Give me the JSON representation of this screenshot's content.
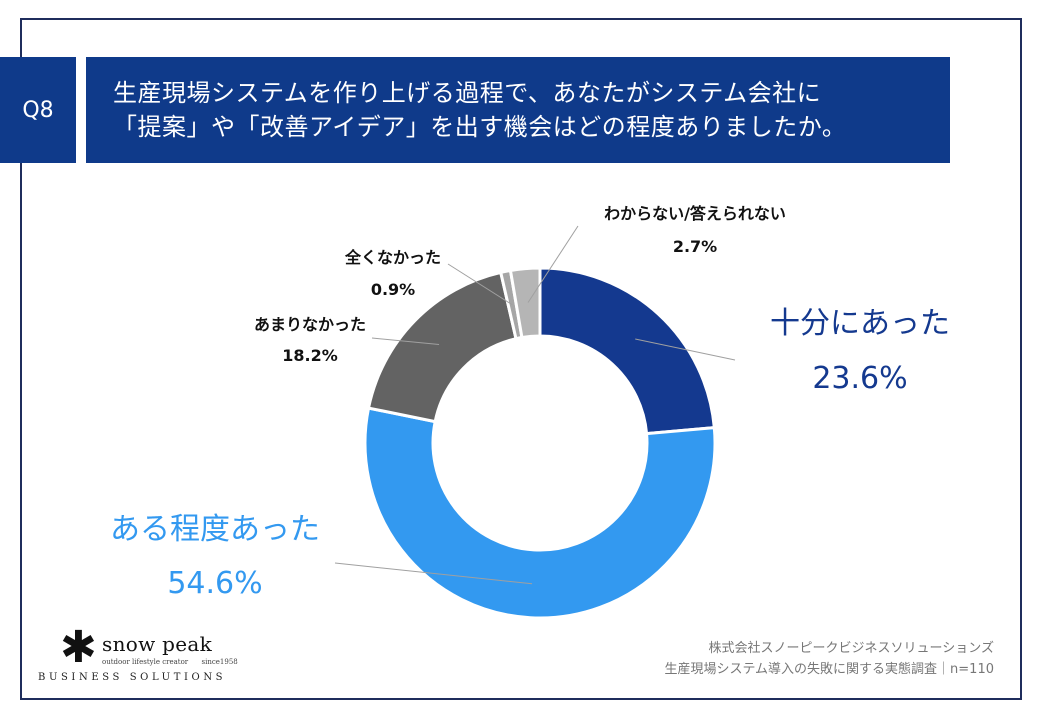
{
  "header": {
    "question_badge": "Q8",
    "title_line1": "生産現場システムを作り上げる過程で、あなたがシステム会社に",
    "title_line2": "「提案」や「改善アイデア」を出す機会はどの程度ありましたか。"
  },
  "chart_data": {
    "type": "pie",
    "donut": true,
    "categories": [
      "十分にあった",
      "ある程度あった",
      "あまりなかった",
      "全くなかった",
      "わからない/答えられない"
    ],
    "values": [
      23.6,
      54.6,
      18.2,
      0.9,
      2.7
    ],
    "value_labels": [
      "23.6%",
      "54.6%",
      "18.2%",
      "0.9%",
      "2.7%"
    ],
    "colors": [
      "#14398f",
      "#3399f0",
      "#636363",
      "#a6a6a6",
      "#b5b5b5"
    ],
    "label_colors": [
      "#14398f",
      "#3399f0",
      "#111111",
      "#111111",
      "#111111"
    ],
    "start": "12 o'clock, clockwise"
  },
  "footer": {
    "source_line1": "株式会社スノーピークビジネスソリューションズ",
    "source_line2": "生産現場システム導入の失敗に関する実態調査｜n=110"
  },
  "logo": {
    "symbol": "✱",
    "brand": "snow peak",
    "tagline": "outdoor lifestyle creator",
    "since": "since1958",
    "division": "BUSINESS SOLUTIONS"
  }
}
